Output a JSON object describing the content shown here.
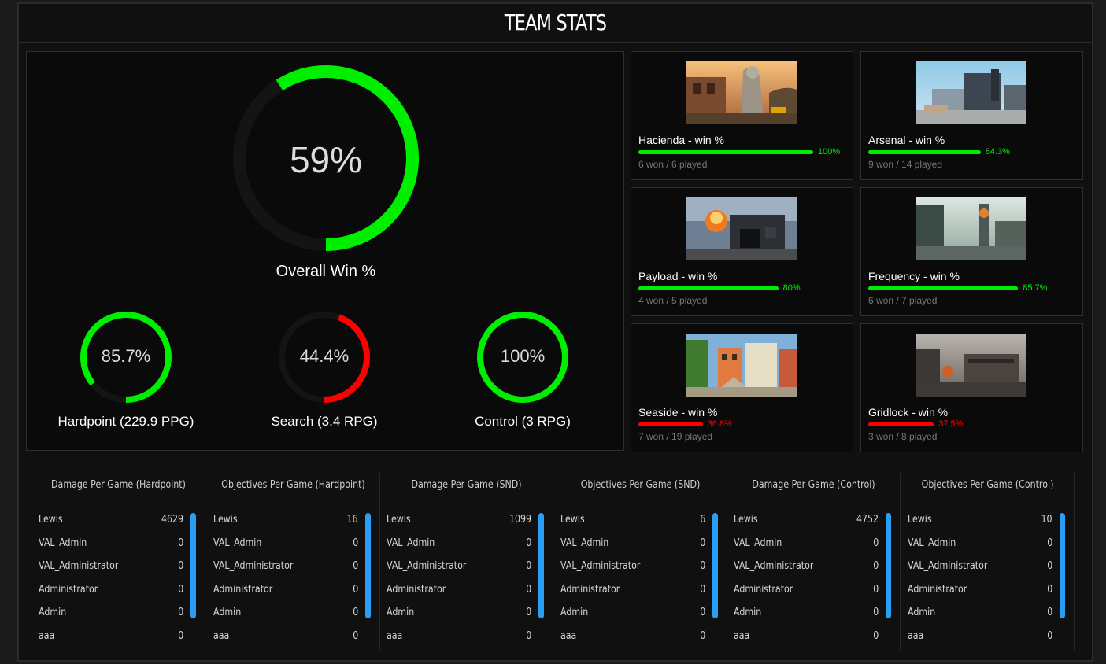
{
  "header": {
    "title": "TEAM STATS"
  },
  "overall": {
    "value": 59,
    "label_pct": "59%",
    "label": "Overall Win %",
    "color": "#00ee00"
  },
  "modes": [
    {
      "value": 85.7,
      "label_pct": "85.7%",
      "label": "Hardpoint (229.9 PPG)",
      "color": "#00ee00"
    },
    {
      "value": 44.4,
      "label_pct": "44.4%",
      "label": "Search (3.4 RPG)",
      "color": "#ff0000"
    },
    {
      "value": 100,
      "label_pct": "100%",
      "label": "Control (3 RPG)",
      "color": "#00ee00"
    }
  ],
  "maps": [
    {
      "title": "Hacienda - win %",
      "pct": 100,
      "pct_label": "100%",
      "played": "6 won / 6 played",
      "color": "#00ee00"
    },
    {
      "title": "Arsenal - win %",
      "pct": 64.3,
      "pct_label": "64.3%",
      "played": "9 won / 14 played",
      "color": "#00ee00"
    },
    {
      "title": "Payload - win %",
      "pct": 80,
      "pct_label": "80%",
      "played": "4 won / 5 played",
      "color": "#00ee00"
    },
    {
      "title": "Frequency - win %",
      "pct": 85.7,
      "pct_label": "85.7%",
      "played": "6 won / 7 played",
      "color": "#00ee00"
    },
    {
      "title": "Seaside - win %",
      "pct": 36.8,
      "pct_label": "36.8%",
      "played": "7 won / 19 played",
      "color": "#ff0000"
    },
    {
      "title": "Gridlock - win %",
      "pct": 37.5,
      "pct_label": "37.5%",
      "played": "3 won / 8 played",
      "color": "#ff0000"
    }
  ],
  "stats": [
    {
      "title": "Damage Per Game (Hardpoint)",
      "rows": [
        {
          "name": "Lewis",
          "value": "4629"
        },
        {
          "name": "VAL_Admin",
          "value": "0"
        },
        {
          "name": "VAL_Administrator",
          "value": "0"
        },
        {
          "name": "Administrator",
          "value": "0"
        },
        {
          "name": "Admin",
          "value": "0"
        },
        {
          "name": "aaa",
          "value": "0"
        }
      ]
    },
    {
      "title": "Objectives Per Game (Hardpoint)",
      "rows": [
        {
          "name": "Lewis",
          "value": "16"
        },
        {
          "name": "VAL_Admin",
          "value": "0"
        },
        {
          "name": "VAL_Administrator",
          "value": "0"
        },
        {
          "name": "Administrator",
          "value": "0"
        },
        {
          "name": "Admin",
          "value": "0"
        },
        {
          "name": "aaa",
          "value": "0"
        }
      ]
    },
    {
      "title": "Damage Per Game (SND)",
      "rows": [
        {
          "name": "Lewis",
          "value": "1099"
        },
        {
          "name": "VAL_Admin",
          "value": "0"
        },
        {
          "name": "VAL_Administrator",
          "value": "0"
        },
        {
          "name": "Administrator",
          "value": "0"
        },
        {
          "name": "Admin",
          "value": "0"
        },
        {
          "name": "aaa",
          "value": "0"
        }
      ]
    },
    {
      "title": "Objectives Per Game (SND)",
      "rows": [
        {
          "name": "Lewis",
          "value": "6"
        },
        {
          "name": "VAL_Admin",
          "value": "0"
        },
        {
          "name": "VAL_Administrator",
          "value": "0"
        },
        {
          "name": "Administrator",
          "value": "0"
        },
        {
          "name": "Admin",
          "value": "0"
        },
        {
          "name": "aaa",
          "value": "0"
        }
      ]
    },
    {
      "title": "Damage Per Game (Control)",
      "rows": [
        {
          "name": "Lewis",
          "value": "4752"
        },
        {
          "name": "VAL_Admin",
          "value": "0"
        },
        {
          "name": "VAL_Administrator",
          "value": "0"
        },
        {
          "name": "Administrator",
          "value": "0"
        },
        {
          "name": "Admin",
          "value": "0"
        },
        {
          "name": "aaa",
          "value": "0"
        }
      ]
    },
    {
      "title": "Objectives Per Game (Control)",
      "rows": [
        {
          "name": "Lewis",
          "value": "10"
        },
        {
          "name": "VAL_Admin",
          "value": "0"
        },
        {
          "name": "VAL_Administrator",
          "value": "0"
        },
        {
          "name": "Administrator",
          "value": "0"
        },
        {
          "name": "Admin",
          "value": "0"
        },
        {
          "name": "aaa",
          "value": "0"
        }
      ]
    }
  ]
}
